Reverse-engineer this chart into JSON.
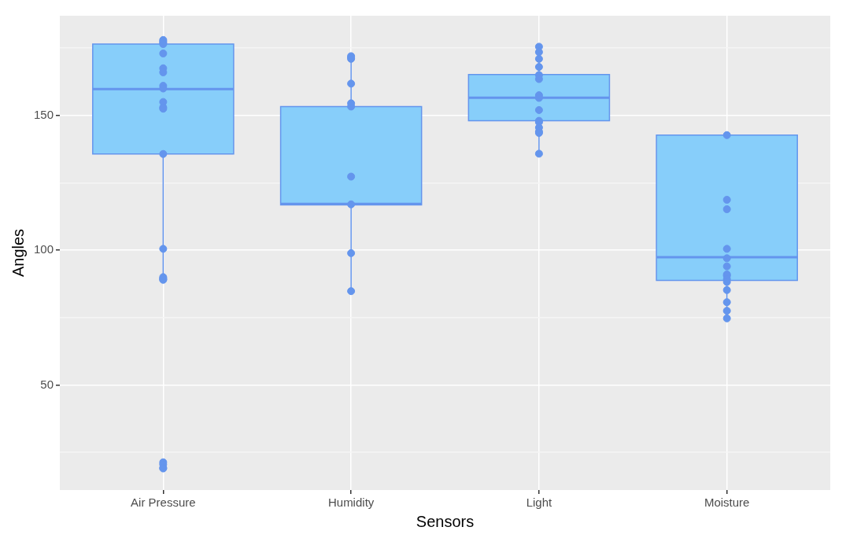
{
  "chart_data": {
    "type": "box",
    "xlabel": "Sensors",
    "ylabel": "Angles",
    "categories": [
      "Air Pressure",
      "Humidity",
      "Light",
      "Moisture"
    ],
    "ylim": [
      11,
      187
    ],
    "yticks": [
      {
        "value": 25,
        "label": null
      },
      50,
      {
        "value": 75,
        "label": null
      },
      100,
      {
        "value": 125,
        "label": null
      },
      150,
      {
        "value": 175,
        "label": null
      }
    ],
    "grid": true,
    "legend": false,
    "series": [
      {
        "type": "box",
        "color": "#87cefa",
        "boxes": [
          {
            "low": 89.5,
            "q1": 135.7,
            "median": 159.8,
            "q3": 176.5,
            "high": 177.5
          },
          {
            "low": 84.8,
            "q1": 116.8,
            "median": 117.2,
            "q3": 153.3,
            "high": 172.2
          },
          {
            "low": 136,
            "q1": 148,
            "median": 156.6,
            "q3": 165.2,
            "high": 175.5
          },
          {
            "low": 74.7,
            "q1": 88.8,
            "median": 97.4,
            "q3": 142.7,
            "high": 142.7
          }
        ]
      },
      {
        "type": "scatter",
        "color": "#6495ed",
        "x": [
          "Air Pressure",
          "Air Pressure",
          "Air Pressure",
          "Air Pressure",
          "Air Pressure",
          "Air Pressure",
          "Air Pressure",
          "Air Pressure",
          "Air Pressure",
          "Air Pressure",
          "Air Pressure",
          "Air Pressure",
          "Air Pressure",
          "Air Pressure",
          "Air Pressure",
          "Air Pressure",
          "Air Pressure",
          "Air Pressure",
          "Air Pressure",
          "Air Pressure",
          "Air Pressure",
          "Air Pressure",
          "Humidity",
          "Humidity",
          "Humidity",
          "Humidity",
          "Humidity",
          "Humidity",
          "Humidity",
          "Humidity",
          "Humidity",
          "Humidity",
          "Light",
          "Light",
          "Light",
          "Light",
          "Light",
          "Light",
          "Light",
          "Light",
          "Light",
          "Light",
          "Light",
          "Light",
          "Light",
          "Light",
          "Light",
          "Moisture",
          "Moisture",
          "Moisture",
          "Moisture",
          "Moisture",
          "Moisture",
          "Moisture",
          "Moisture",
          "Moisture",
          "Moisture",
          "Moisture",
          "Moisture",
          "Moisture",
          "Moisture"
        ],
        "values": [
          178,
          177,
          177.5,
          176.5,
          173,
          167.5,
          166,
          161,
          160,
          155,
          153,
          152.5,
          135.7,
          89.5,
          89,
          90,
          89.2,
          100.5,
          21.3,
          20.5,
          19.2,
          19,
          172,
          171,
          161.8,
          171.5,
          153.3,
          154.5,
          127.3,
          117,
          98.9,
          84.8,
          175.5,
          173.5,
          171,
          168,
          165,
          163.5,
          157.5,
          156.5,
          152,
          148,
          147.5,
          145.5,
          144,
          143.5,
          135.8,
          142.7,
          118.7,
          115.2,
          100.5,
          97,
          94,
          91,
          90.5,
          89.2,
          88.2,
          85.2,
          80.7,
          77.5,
          74.7
        ]
      }
    ]
  }
}
